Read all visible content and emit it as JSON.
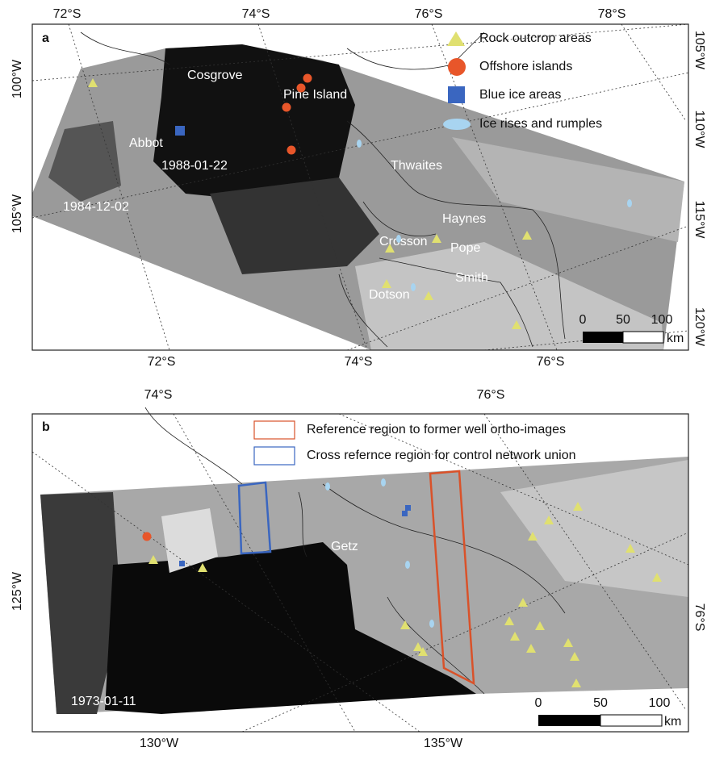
{
  "panel_a": {
    "label": "a",
    "graticule_top": [
      "72°S",
      "74°S",
      "76°S",
      "78°S"
    ],
    "graticule_bottom": [
      "72°S",
      "74°S",
      "76°S"
    ],
    "graticule_left": [
      "100°W",
      "105°W"
    ],
    "graticule_right": [
      "105°W",
      "110°W",
      "115°W",
      "120°W"
    ],
    "legend": [
      "Rock outcrop areas",
      "Offshore islands",
      "Blue ice areas",
      "Ice rises and rumples"
    ],
    "places": [
      "Cosgrove",
      "Pine Island",
      "Abbot",
      "1988-01-22",
      "Thwaites",
      "1984-12-02",
      "Haynes",
      "Crosson",
      "Pope",
      "Smith",
      "Dotson"
    ],
    "scale": [
      "0",
      "50",
      "100",
      "km"
    ]
  },
  "panel_b": {
    "label": "b",
    "graticule_top": [
      "74°S",
      "76°S"
    ],
    "graticule_bottom": [
      "130°W",
      "135°W"
    ],
    "graticule_left": [
      "125°W"
    ],
    "graticule_right": [
      "76°S"
    ],
    "legend": [
      "Reference region to former well ortho-images",
      "Cross refernce region for control network union"
    ],
    "places": [
      "Getz",
      "1973-01-11"
    ],
    "scale": [
      "0",
      "50",
      "100",
      "km"
    ]
  }
}
